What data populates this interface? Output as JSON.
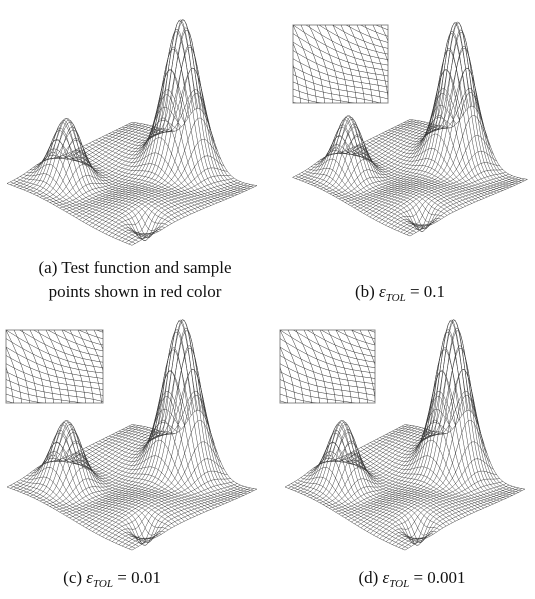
{
  "panels": [
    {
      "label": "(a) Test function and sample",
      "label_line2": "points shown in red color"
    },
    {
      "label": "(b)",
      "symbol": "ε",
      "subscript": "TOL",
      "equation": "= 0.1"
    },
    {
      "label": "(c)",
      "symbol": "ε",
      "subscript": "TOL",
      "equation": "= 0.01"
    },
    {
      "label": "(d)",
      "symbol": "ε",
      "subscript": "TOL",
      "equation": "= 0.001"
    }
  ]
}
